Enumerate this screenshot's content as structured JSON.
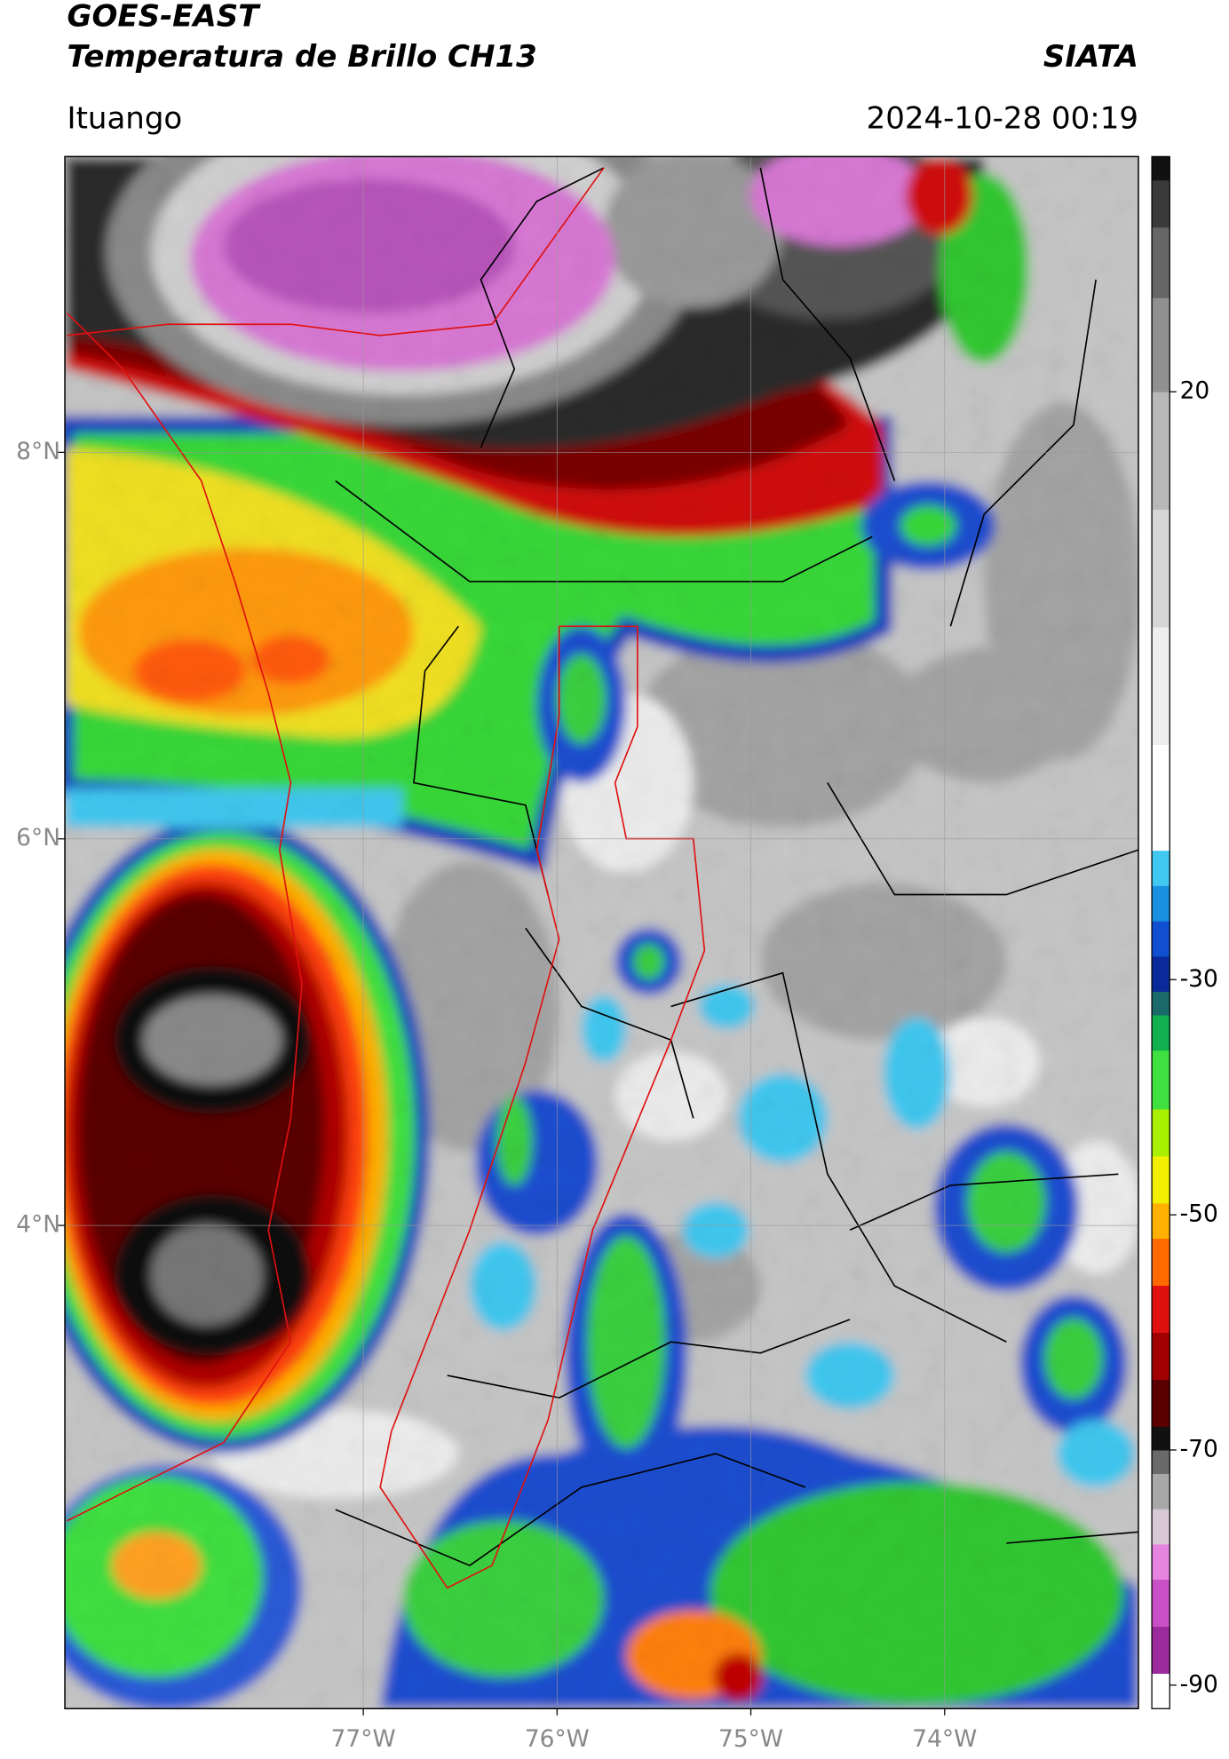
{
  "header": {
    "title": "GOES-EAST",
    "subtitle": "Temperatura de Brillo CH13",
    "source": "SIATA",
    "location": "Ituango",
    "datetime": "2024-10-28 00:19"
  },
  "map": {
    "xlim": [
      -78.54,
      -73.0
    ],
    "ylim": [
      1.5,
      9.53
    ],
    "xticks": [
      {
        "value": -77,
        "label": "77°W"
      },
      {
        "value": -76,
        "label": "76°W"
      },
      {
        "value": -75,
        "label": "75°W"
      },
      {
        "value": -74,
        "label": "74°W"
      }
    ],
    "yticks": [
      {
        "value": 4,
        "label": "4°N"
      },
      {
        "value": 6,
        "label": "6°N"
      },
      {
        "value": 8,
        "label": "8°N"
      }
    ],
    "grid": true
  },
  "colorbar": {
    "clim": [
      -92,
      40
    ],
    "ticks": [
      -90,
      -70,
      -50,
      -30,
      20
    ],
    "colormap": [
      {
        "value": -92,
        "color": "#ffffff"
      },
      {
        "value": -89,
        "color": "#9b2a9b"
      },
      {
        "value": -85,
        "color": "#c84fc6"
      },
      {
        "value": -81,
        "color": "#e685df"
      },
      {
        "value": -78,
        "color": "#d8c8d6"
      },
      {
        "value": -75,
        "color": "#a8a8a8"
      },
      {
        "value": -72,
        "color": "#6a6a6a"
      },
      {
        "value": -70,
        "color": "#111111"
      },
      {
        "value": -68,
        "color": "#5a0000"
      },
      {
        "value": -64,
        "color": "#a00000"
      },
      {
        "value": -60,
        "color": "#e01010"
      },
      {
        "value": -56,
        "color": "#ff6a00"
      },
      {
        "value": -52,
        "color": "#ffb000"
      },
      {
        "value": -49,
        "color": "#f0f000"
      },
      {
        "value": -45,
        "color": "#a8f000"
      },
      {
        "value": -41,
        "color": "#40e040"
      },
      {
        "value": -36,
        "color": "#10b050"
      },
      {
        "value": -33,
        "color": "#1a6a6a"
      },
      {
        "value": -31,
        "color": "#0a2a9a"
      },
      {
        "value": -28,
        "color": "#1050d0"
      },
      {
        "value": -25,
        "color": "#1a90e0"
      },
      {
        "value": -22,
        "color": "#40c8f0"
      },
      {
        "value": -19,
        "color": "#ffffff"
      },
      {
        "value": -10,
        "color": "#eeeeee"
      },
      {
        "value": 0,
        "color": "#d6d6d6"
      },
      {
        "value": 10,
        "color": "#b8b8b8"
      },
      {
        "value": 20,
        "color": "#909090"
      },
      {
        "value": 28,
        "color": "#666666"
      },
      {
        "value": 34,
        "color": "#3a3a3a"
      },
      {
        "value": 38,
        "color": "#111111"
      }
    ]
  }
}
